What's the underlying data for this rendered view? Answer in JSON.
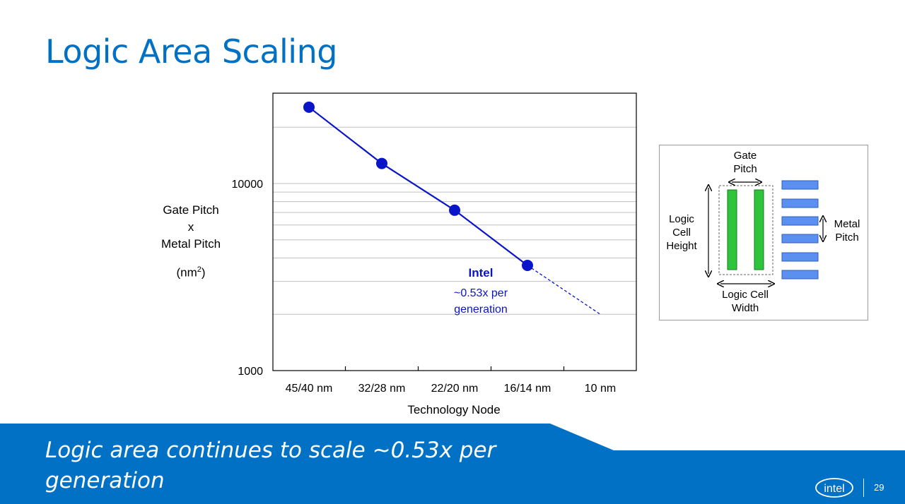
{
  "slide": {
    "title": "Logic Area Scaling",
    "banner_text": "Logic area continues to scale ~0.53x per generation",
    "page_number": "29",
    "logo_text": "intel"
  },
  "chart_data": {
    "type": "scatter",
    "xlabel": "Technology Node",
    "ylabel_lines": [
      "Gate Pitch",
      "x",
      "Metal Pitch"
    ],
    "ylabel_unit_base": "(nm",
    "ylabel_unit_sup": "2",
    "ylabel_unit_end": ")",
    "yscale": "log",
    "ylim": [
      1000,
      30000
    ],
    "yticks": [
      "1000",
      "10000"
    ],
    "categories": [
      "45/40 nm",
      "32/28 nm",
      "22/20 nm",
      "16/14 nm",
      "10 nm"
    ],
    "series": [
      {
        "values": [
          25600,
          12800,
          7200,
          3650
        ],
        "trend": "solid"
      }
    ],
    "projection": {
      "from_category": "16/14 nm",
      "to_category": "10 nm",
      "to_value": 2000,
      "style": "dashed"
    },
    "annotation": {
      "title": "Intel",
      "line1": "~0.53x per",
      "line2": "generation"
    },
    "colors": {
      "series": "#0a14c8",
      "grid": "#c0c0c0"
    },
    "grid": true
  },
  "diagram": {
    "gate_pitch_line1": "Gate",
    "gate_pitch_line2": "Pitch",
    "cell_height_line1": "Logic",
    "cell_height_line2": "Cell",
    "cell_height_line3": "Height",
    "metal_pitch_line1": "Metal",
    "metal_pitch_line2": "Pitch",
    "cell_width_line1": "Logic Cell",
    "cell_width_line2": "Width",
    "colors": {
      "gate": "#2ec43c",
      "metal": "#5b8ff0"
    }
  },
  "colors": {
    "title": "#0071c5",
    "banner": "#0071c5"
  }
}
